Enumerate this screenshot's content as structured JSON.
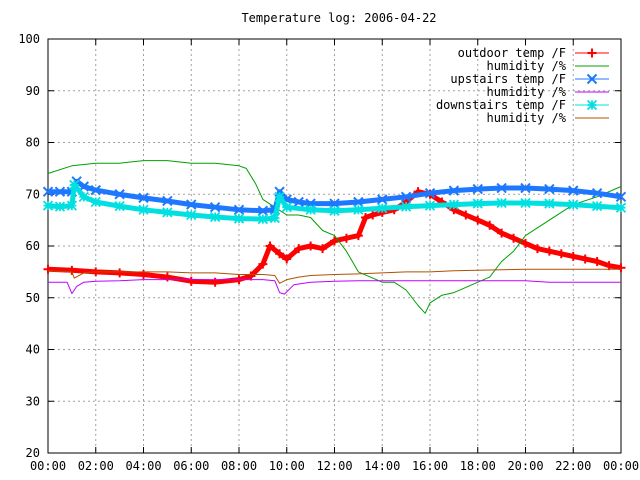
{
  "chart_data": {
    "type": "line",
    "title": "Temperature log: 2006-04-22",
    "xlabel": "",
    "ylabel": "",
    "grid": true,
    "legend_placement": "top-right",
    "xlim": [
      0,
      24
    ],
    "ylim": [
      20,
      100
    ],
    "x_ticks": [
      "00:00",
      "02:00",
      "04:00",
      "06:00",
      "08:00",
      "10:00",
      "12:00",
      "14:00",
      "16:00",
      "18:00",
      "20:00",
      "22:00",
      "00:00"
    ],
    "y_ticks": [
      "20",
      "30",
      "40",
      "50",
      "60",
      "70",
      "80",
      "90",
      "100"
    ],
    "series": [
      {
        "name": "outdoor temp /F",
        "color": "#ff0000",
        "marker": "plus",
        "x": [
          0,
          1,
          2,
          3,
          4,
          5,
          6,
          7,
          8,
          8.5,
          9,
          9.3,
          9.7,
          10,
          10.5,
          11,
          11.5,
          12,
          12.5,
          13,
          13.3,
          13.6,
          14,
          14.5,
          15,
          15.5,
          16,
          16.5,
          17,
          17.5,
          18,
          18.5,
          19,
          19.5,
          20,
          20.5,
          21,
          21.5,
          22,
          22.5,
          23,
          23.5,
          24
        ],
        "values": [
          55.5,
          55.3,
          55.0,
          54.8,
          54.5,
          54.0,
          53.2,
          53.0,
          53.5,
          54.2,
          56.5,
          60.0,
          58.5,
          57.5,
          59.5,
          60.0,
          59.5,
          61.0,
          61.5,
          62.0,
          65.5,
          66.0,
          66.5,
          67.0,
          68.5,
          70.5,
          70.0,
          68.5,
          67.0,
          66.0,
          65.0,
          64.0,
          62.5,
          61.5,
          60.5,
          59.5,
          59.0,
          58.5,
          58.0,
          57.5,
          57.0,
          56.2,
          55.8
        ]
      },
      {
        "name": "humidity /%",
        "color": "#00a000",
        "marker": "none",
        "x": [
          0,
          1,
          2,
          3,
          4,
          5,
          6,
          7,
          8,
          8.3,
          8.7,
          9,
          9.5,
          10,
          10.5,
          11,
          11.5,
          12,
          12.5,
          13,
          13.5,
          14,
          14.5,
          15,
          15.5,
          15.8,
          16,
          16.5,
          17,
          17.5,
          18,
          18.5,
          19,
          19.5,
          20,
          21,
          22,
          23,
          24
        ],
        "values": [
          74.0,
          75.5,
          76.0,
          76.0,
          76.5,
          76.5,
          76.0,
          76.0,
          75.5,
          75.0,
          72.0,
          69.0,
          67.5,
          66.0,
          66.0,
          65.5,
          63.0,
          62.0,
          59.0,
          55.0,
          54.0,
          53.0,
          53.0,
          51.5,
          48.5,
          47.0,
          49.0,
          50.5,
          51.0,
          52.0,
          53.0,
          54.0,
          57.0,
          59.0,
          62.0,
          65.0,
          68.0,
          69.5,
          71.5
        ]
      },
      {
        "name": "upstairs temp /F",
        "color": "#1e78ff",
        "marker": "cross",
        "x": [
          0,
          0.5,
          1,
          1.2,
          1.5,
          2,
          3,
          4,
          5,
          6,
          7,
          8,
          9,
          9.5,
          9.7,
          10,
          10.5,
          11,
          12,
          13,
          14,
          15,
          16,
          17,
          18,
          19,
          20,
          21,
          22,
          23,
          24
        ],
        "values": [
          70.5,
          70.5,
          70.5,
          72.5,
          71.5,
          70.8,
          70.0,
          69.3,
          68.7,
          68.0,
          67.5,
          67.0,
          66.8,
          67.0,
          70.5,
          69.0,
          68.5,
          68.2,
          68.2,
          68.5,
          69.0,
          69.5,
          70.2,
          70.7,
          71.0,
          71.2,
          71.2,
          71.0,
          70.7,
          70.2,
          69.5
        ]
      },
      {
        "name": "humidity /%",
        "color": "#c000ff",
        "marker": "none",
        "x": [
          0,
          0.8,
          1,
          1.2,
          1.5,
          2,
          3,
          4,
          5,
          6,
          7,
          8,
          9,
          9.5,
          9.7,
          9.9,
          10.3,
          11,
          12,
          13,
          14,
          15,
          16,
          17,
          18,
          19,
          20,
          21,
          22,
          23,
          24
        ],
        "values": [
          53.0,
          53.0,
          50.8,
          52.2,
          53.0,
          53.2,
          53.3,
          53.5,
          53.5,
          53.5,
          53.5,
          53.5,
          53.5,
          53.3,
          51.0,
          50.7,
          52.5,
          53.0,
          53.2,
          53.3,
          53.3,
          53.3,
          53.3,
          53.3,
          53.3,
          53.3,
          53.3,
          53.0,
          53.0,
          53.0,
          53.0
        ]
      },
      {
        "name": "downstairs temp /F",
        "color": "#00e0e0",
        "marker": "star",
        "x": [
          0,
          0.5,
          1,
          1.1,
          1.5,
          2,
          3,
          4,
          5,
          6,
          7,
          8,
          9,
          9.5,
          9.7,
          10,
          11,
          12,
          13,
          14,
          15,
          16,
          17,
          18,
          19,
          20,
          21,
          22,
          23,
          24
        ],
        "values": [
          67.8,
          67.6,
          67.8,
          71.8,
          69.5,
          68.5,
          67.7,
          67.0,
          66.5,
          66.0,
          65.6,
          65.3,
          65.2,
          65.4,
          69.5,
          67.5,
          67.0,
          66.8,
          67.0,
          67.3,
          67.6,
          67.8,
          68.0,
          68.2,
          68.3,
          68.3,
          68.2,
          68.0,
          67.7,
          67.4
        ]
      },
      {
        "name": "humidity /%",
        "color": "#b05000",
        "marker": "none",
        "x": [
          0,
          1,
          1.1,
          1.5,
          2,
          3,
          4,
          5,
          6,
          7,
          8,
          9,
          9.5,
          9.7,
          10,
          10.5,
          11,
          12,
          13,
          14,
          15,
          16,
          17,
          18,
          19,
          20,
          21,
          22,
          23,
          24
        ],
        "values": [
          55.2,
          55.0,
          53.8,
          54.8,
          55.0,
          55.0,
          55.0,
          55.0,
          54.8,
          54.8,
          54.5,
          54.5,
          54.3,
          52.8,
          53.5,
          54.0,
          54.3,
          54.5,
          54.6,
          54.8,
          55.0,
          55.0,
          55.2,
          55.3,
          55.4,
          55.5,
          55.5,
          55.5,
          55.5,
          55.5
        ]
      }
    ]
  }
}
